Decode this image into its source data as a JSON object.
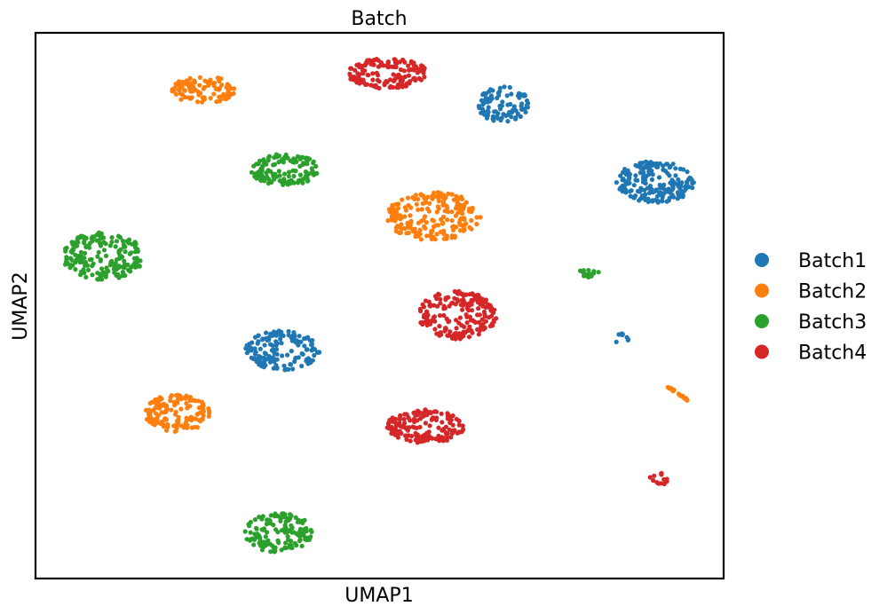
{
  "chart_data": {
    "type": "scatter",
    "title": "Batch",
    "xlabel": "UMAP1",
    "ylabel": "UMAP2",
    "xlim": [
      0,
      100
    ],
    "ylim": [
      0,
      100
    ],
    "grid": false,
    "ticks": false,
    "legend_position": "right",
    "series": [
      {
        "name": "Batch1",
        "color": "#1f77b4",
        "clusters": [
          {
            "shape": "blob",
            "cx": 68.1,
            "cy": 86.8,
            "rx": 3.8,
            "ry": 3.4,
            "n": 90
          },
          {
            "shape": "blob",
            "cx": 90.2,
            "cy": 72.7,
            "rx": 5.9,
            "ry": 3.8,
            "n": 190
          },
          {
            "shape": "blob",
            "cx": 35.9,
            "cy": 41.8,
            "rx": 5.4,
            "ry": 3.6,
            "n": 150
          },
          {
            "shape": "blob",
            "cx": 85.0,
            "cy": 44.0,
            "rx": 1.2,
            "ry": 0.9,
            "n": 9
          }
        ]
      },
      {
        "name": "Batch2",
        "color": "#ff7f0e",
        "clusters": [
          {
            "shape": "blob",
            "cx": 24.5,
            "cy": 89.5,
            "rx": 4.8,
            "ry": 2.5,
            "n": 90
          },
          {
            "shape": "blob",
            "cx": 57.8,
            "cy": 66.4,
            "rx": 6.9,
            "ry": 4.4,
            "n": 210
          },
          {
            "shape": "blob",
            "cx": 20.6,
            "cy": 30.3,
            "rx": 4.7,
            "ry": 3.4,
            "n": 140
          },
          {
            "shape": "line",
            "x0": 91.8,
            "y0": 35.3,
            "x1": 94.9,
            "y1": 32.6,
            "n": 25
          }
        ]
      },
      {
        "name": "Batch3",
        "color": "#2ca02c",
        "clusters": [
          {
            "shape": "blob",
            "cx": 36.2,
            "cy": 74.9,
            "rx": 5.0,
            "ry": 2.9,
            "n": 130
          },
          {
            "shape": "blob",
            "cx": 9.8,
            "cy": 59.1,
            "rx": 5.9,
            "ry": 4.4,
            "n": 190
          },
          {
            "shape": "blob",
            "cx": 80.4,
            "cy": 56.1,
            "rx": 1.5,
            "ry": 0.9,
            "n": 16
          },
          {
            "shape": "blob",
            "cx": 35.3,
            "cy": 8.4,
            "rx": 5.0,
            "ry": 3.6,
            "n": 140
          }
        ]
      },
      {
        "name": "Batch4",
        "color": "#d62728",
        "clusters": [
          {
            "shape": "blob",
            "cx": 51.1,
            "cy": 92.6,
            "rx": 5.9,
            "ry": 2.8,
            "n": 150
          },
          {
            "shape": "blob",
            "cx": 61.3,
            "cy": 48.3,
            "rx": 5.7,
            "ry": 4.4,
            "n": 190
          },
          {
            "shape": "blob",
            "cx": 56.7,
            "cy": 27.9,
            "rx": 5.7,
            "ry": 3.1,
            "n": 160
          },
          {
            "shape": "blob",
            "cx": 90.6,
            "cy": 18.3,
            "rx": 1.4,
            "ry": 1.2,
            "n": 15
          }
        ]
      }
    ]
  }
}
